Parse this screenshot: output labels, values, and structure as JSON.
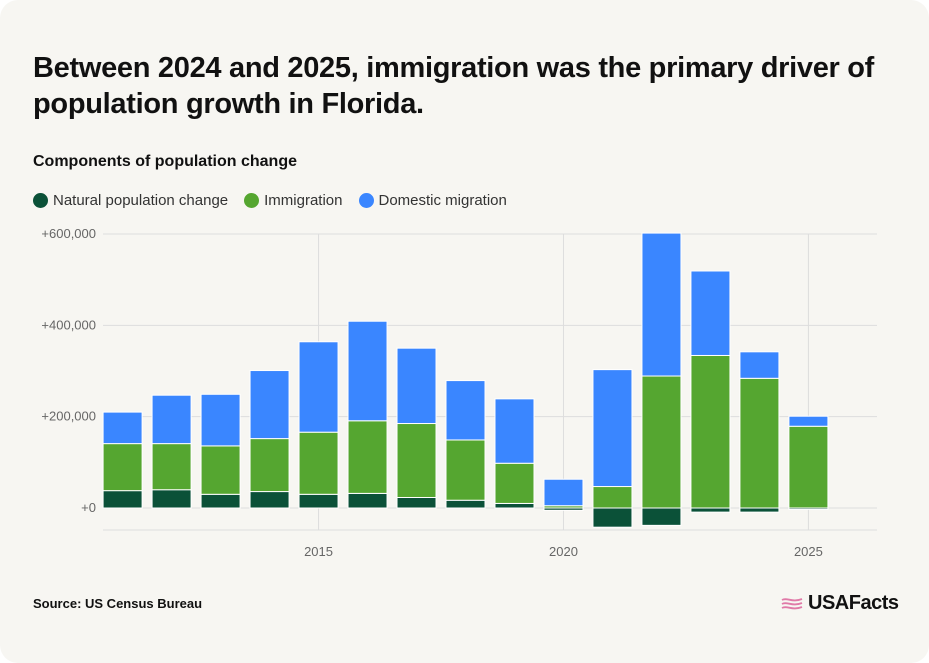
{
  "title": "Between 2024 and 2025, immigration was the primary driver of population growth in Florida.",
  "subtitle": "Components of population change",
  "source": "Source: US Census Bureau",
  "brand": "USAFacts",
  "colors": {
    "natural": "#0b5138",
    "immigration": "#55a630",
    "domestic": "#3a86ff",
    "logo_mark": "#e07aa8"
  },
  "chart_data": {
    "type": "bar",
    "stacked": true,
    "x": [
      2011,
      2012,
      2013,
      2014,
      2015,
      2016,
      2017,
      2018,
      2019,
      2020,
      2021,
      2022,
      2023,
      2024,
      2025
    ],
    "series": [
      {
        "name": "Natural population change",
        "values": [
          38000,
          40000,
          30000,
          36000,
          30000,
          32000,
          23000,
          17000,
          10000,
          -5000,
          -42000,
          -38000,
          -9000,
          -9000,
          -3000
        ]
      },
      {
        "name": "Immigration",
        "values": [
          103000,
          101000,
          106000,
          116000,
          136000,
          159000,
          162000,
          132000,
          88000,
          5000,
          47000,
          289000,
          334000,
          284000,
          179000
        ]
      },
      {
        "name": "Domestic migration",
        "values": [
          69000,
          106000,
          113000,
          149000,
          198000,
          218000,
          165000,
          130000,
          141000,
          58000,
          256000,
          313000,
          185000,
          58000,
          22000
        ]
      }
    ],
    "y_ticks": [
      {
        "value": 0,
        "label": "+0"
      },
      {
        "value": 200000,
        "label": "+200,000"
      },
      {
        "value": 400000,
        "label": "+400,000"
      },
      {
        "value": 600000,
        "label": "+600,000"
      }
    ],
    "x_ticks": [
      {
        "value": 2015,
        "label": "2015"
      },
      {
        "value": 2020,
        "label": "2020"
      },
      {
        "value": 2025,
        "label": "2025"
      }
    ],
    "ylim": [
      -50000,
      600000
    ],
    "xlim": [
      2010.6,
      2026.4
    ],
    "grid": true,
    "legend": "top-left"
  }
}
